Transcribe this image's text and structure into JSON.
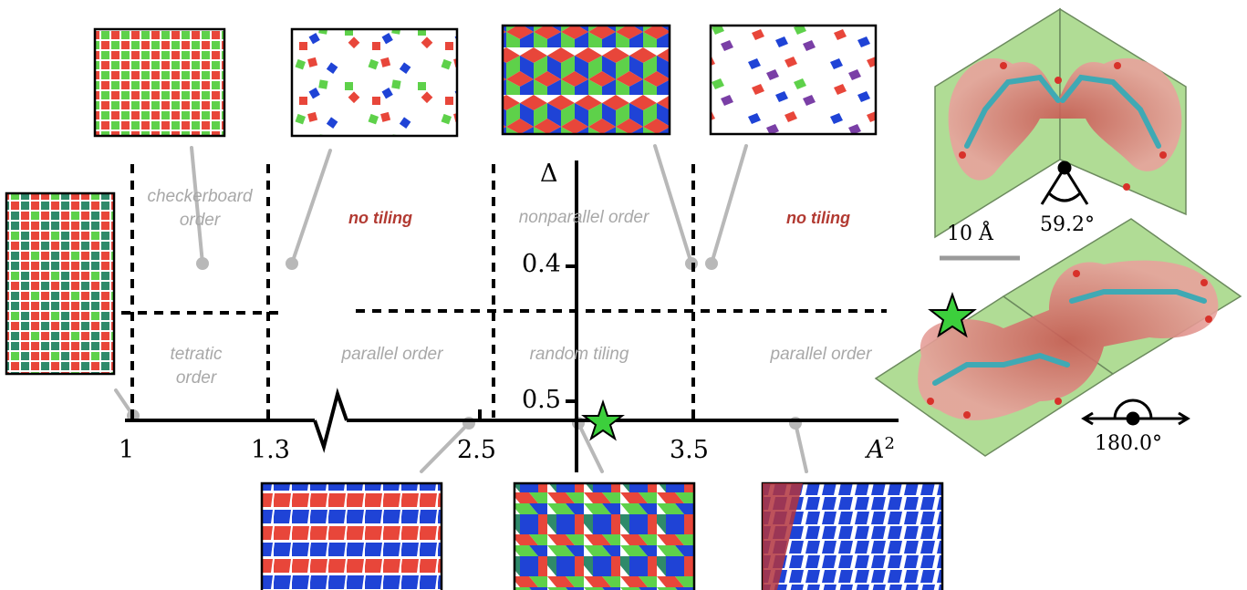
{
  "phase_labels": {
    "checkerboard": [
      "checkerboard",
      "order"
    ],
    "no_tiling_left": "no tiling",
    "nonparallel": "nonparallel order",
    "no_tiling_right": "no tiling",
    "tetratic": [
      "tetratic",
      "order"
    ],
    "parallel_left": "parallel order",
    "random_tiling": "random tiling",
    "parallel_right": "parallel order"
  },
  "axes": {
    "x_label": "A",
    "x_exponent": "2",
    "y_label": "Δ",
    "x_ticks": [
      "1",
      "1.3",
      "2.5",
      "3.5"
    ],
    "y_ticks": [
      "0.4",
      "0.5"
    ]
  },
  "molecules": {
    "scale_bar": "10 Å",
    "angle_bent": "59.2°",
    "angle_straight": "180.0°"
  },
  "colors": {
    "red": "#e8463a",
    "green": "#5ed14a",
    "blue": "#1f43d6",
    "teal": "#2f8a6a",
    "purple": "#7a3fa6",
    "label_gray": "#a8a8a8",
    "label_red": "#b23a32",
    "star": "#3ccf3c",
    "membrane": "#b0dc95"
  }
}
